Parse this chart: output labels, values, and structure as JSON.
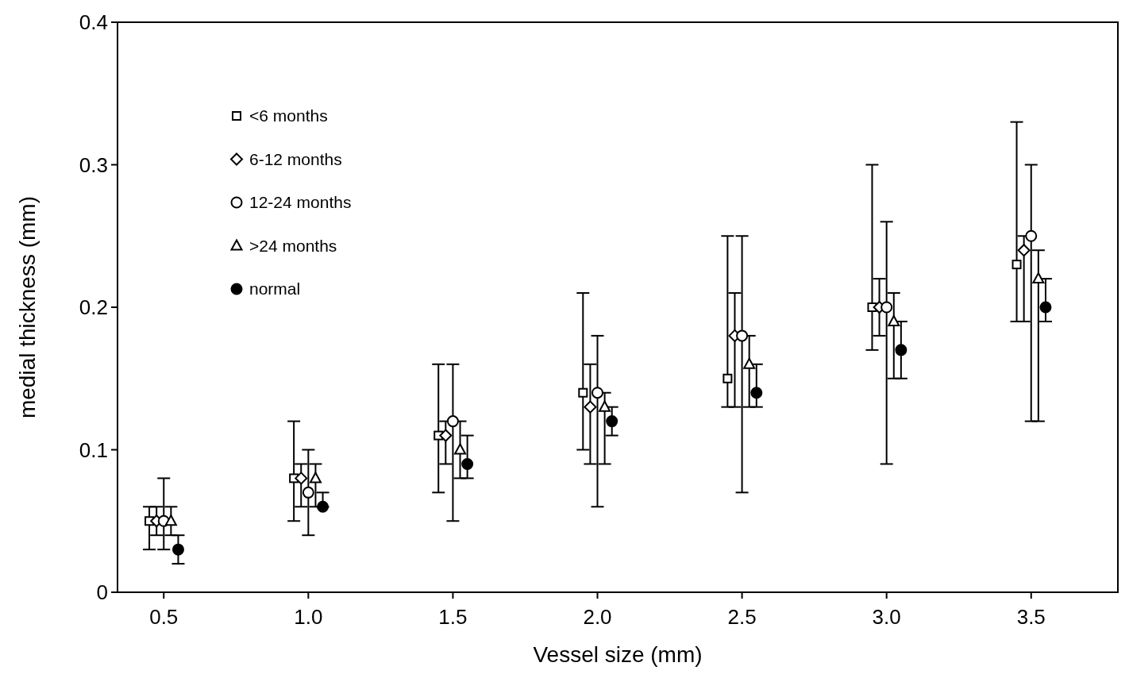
{
  "chart_data": {
    "type": "scatter",
    "xlabel": "Vessel size (mm)",
    "ylabel": "medial thickness (mm)",
    "xlim": [
      0.34,
      3.8
    ],
    "xticks": [
      0.5,
      {
        "value": 1,
        "label": "1.0"
      },
      1.5,
      {
        "value": 2,
        "label": "2.0"
      },
      2.5,
      {
        "value": 3,
        "label": "3.0"
      },
      3.5
    ],
    "ylim": [
      0,
      0.4
    ],
    "yticks": [
      0,
      0.1,
      0.2,
      0.3,
      0.4
    ],
    "grid": false,
    "legend": "top left",
    "series": [
      {
        "name": "<6 months",
        "color": "#ffffff",
        "marker": "square",
        "x": [
          0.45,
          0.95,
          1.45,
          1.95,
          2.45,
          2.95,
          3.45
        ],
        "values": [
          0.05,
          0.08,
          0.11,
          0.14,
          0.15,
          0.2,
          0.23
        ],
        "errors": [
          [
            0.03,
            0.06
          ],
          [
            0.05,
            0.12
          ],
          [
            0.07,
            0.16
          ],
          [
            0.1,
            0.21
          ],
          [
            0.13,
            0.25
          ],
          [
            0.17,
            0.3
          ],
          [
            0.19,
            0.33
          ]
        ]
      },
      {
        "name": "6-12 months",
        "color": "#ffffff",
        "marker": "diamond",
        "x": [
          0.475,
          0.975,
          1.475,
          1.975,
          2.475,
          2.975,
          3.475
        ],
        "values": [
          0.05,
          0.08,
          0.11,
          0.13,
          0.18,
          0.2,
          0.24
        ],
        "errors": [
          [
            0.04,
            0.06
          ],
          [
            0.06,
            0.09
          ],
          [
            0.09,
            0.12
          ],
          [
            0.09,
            0.16
          ],
          [
            0.13,
            0.21
          ],
          [
            0.18,
            0.22
          ],
          [
            0.19,
            0.25
          ]
        ]
      },
      {
        "name": "12-24 months",
        "color": "#ffffff",
        "marker": "circle",
        "x": [
          0.5,
          1,
          1.5,
          2,
          2.5,
          3,
          3.5
        ],
        "values": [
          0.05,
          0.07,
          0.12,
          0.14,
          0.18,
          0.2,
          0.25
        ],
        "errors": [
          [
            0.03,
            0.08
          ],
          [
            0.04,
            0.1
          ],
          [
            0.05,
            0.16
          ],
          [
            0.06,
            0.18
          ],
          [
            0.07,
            0.25
          ],
          [
            0.09,
            0.26
          ],
          [
            0.12,
            0.3
          ]
        ]
      },
      {
        "name": ">24 months",
        "color": "#ffffff",
        "marker": "triangle",
        "x": [
          0.525,
          1.025,
          1.525,
          2.025,
          2.525,
          3.025,
          3.525
        ],
        "values": [
          0.05,
          0.08,
          0.1,
          0.13,
          0.16,
          0.19,
          0.22
        ],
        "errors": [
          [
            0.04,
            0.06
          ],
          [
            0.06,
            0.09
          ],
          [
            0.08,
            0.12
          ],
          [
            0.09,
            0.14
          ],
          [
            0.13,
            0.18
          ],
          [
            0.15,
            0.21
          ],
          [
            0.12,
            0.24
          ]
        ]
      },
      {
        "name": "normal",
        "color": "#000000",
        "marker": "circle",
        "x": [
          0.55,
          1.05,
          1.55,
          2.05,
          2.55,
          3.05,
          3.55
        ],
        "values": [
          0.03,
          0.06,
          0.09,
          0.12,
          0.14,
          0.17,
          0.2
        ],
        "errors": [
          [
            0.02,
            0.04
          ],
          [
            0.06,
            0.07
          ],
          [
            0.08,
            0.11
          ],
          [
            0.11,
            0.13
          ],
          [
            0.13,
            0.16
          ],
          [
            0.15,
            0.19
          ],
          [
            0.19,
            0.22
          ]
        ]
      }
    ]
  }
}
